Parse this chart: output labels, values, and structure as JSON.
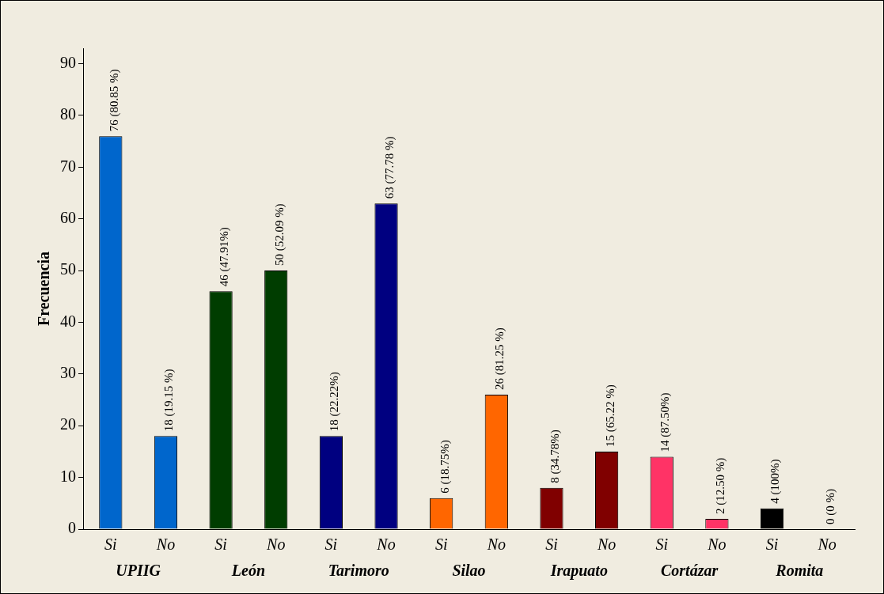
{
  "chart_data": {
    "type": "bar",
    "ylabel": "Frecuencia",
    "categories": [
      "Si",
      "No",
      "Si",
      "No",
      "Si",
      "No",
      "Si",
      "No",
      "Si",
      "No",
      "Si",
      "No",
      "Si",
      "No"
    ],
    "values": [
      76,
      18,
      46,
      50,
      18,
      63,
      6,
      26,
      8,
      15,
      14,
      2,
      4,
      0
    ],
    "colors": [
      "#0066cc",
      "#0066cc",
      "#003d00",
      "#003d00",
      "#000080",
      "#000080",
      "#ff6600",
      "#ff6600",
      "#800000",
      "#800000",
      "#ff3366",
      "#ff3366",
      "#000000",
      "#000000"
    ],
    "value_labels": [
      "76 (80.85 %)",
      "18 (19.15 %)",
      "46 (47.91%)",
      "50 (52.09 %)",
      "18 (22.22%)",
      "63 (77.78 %)",
      "6 (18.75%)",
      "26 (81.25 %)",
      "8 (34.78%)",
      "15 (65.22 %)",
      "14 (87.50%)",
      "2 (12.50 %)",
      "4 (100%)",
      "0 (0 %)"
    ],
    "annotations": [
      "UPIIG",
      "León",
      "Tarimoro",
      "Silao",
      "Irapuato",
      "Cortázar",
      "Romita"
    ],
    "ylim": [
      0,
      93
    ],
    "yticks": [
      0,
      10,
      20,
      30,
      40,
      50,
      60,
      70,
      80,
      90
    ],
    "grid": false,
    "legend": false
  }
}
